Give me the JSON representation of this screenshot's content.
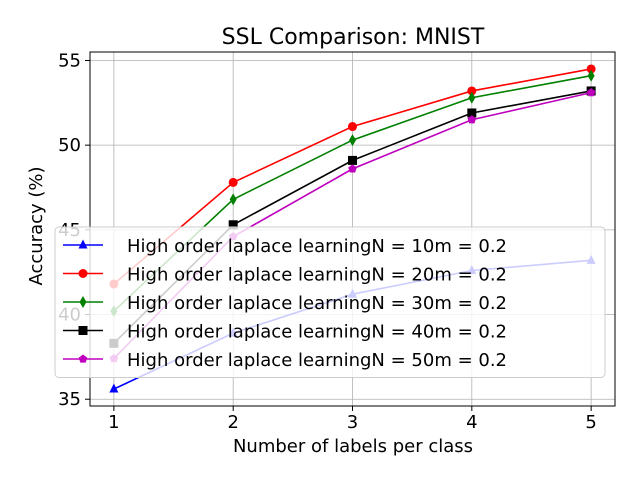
{
  "chart_data": {
    "type": "line",
    "title": "SSL Comparison: MNIST",
    "xlabel": "Number of labels per class",
    "ylabel": "Accuracy (%)",
    "x": [
      1,
      2,
      3,
      4,
      5
    ],
    "xlim": [
      0.8,
      5.2
    ],
    "ylim": [
      34.6,
      55.5
    ],
    "xticks": [
      1,
      2,
      3,
      4,
      5
    ],
    "yticks": [
      35,
      40,
      45,
      50,
      55
    ],
    "grid": true,
    "legend_position": "lower-right",
    "series": [
      {
        "name": "High order laplace learningN = 10m = 0.2",
        "color": "#0000ff",
        "marker": "triangle",
        "values": [
          35.6,
          38.9,
          41.2,
          42.6,
          43.2
        ]
      },
      {
        "name": "High order laplace learningN = 20m = 0.2",
        "color": "#ff0000",
        "marker": "circle",
        "values": [
          41.8,
          47.8,
          51.1,
          53.2,
          54.5
        ]
      },
      {
        "name": "High order laplace learningN = 30m = 0.2",
        "color": "#008000",
        "marker": "diamond",
        "values": [
          40.2,
          46.8,
          50.3,
          52.8,
          54.1
        ]
      },
      {
        "name": "High order laplace learningN = 40m = 0.2",
        "color": "#000000",
        "marker": "square",
        "values": [
          38.3,
          45.3,
          49.1,
          51.9,
          53.2
        ]
      },
      {
        "name": "High order laplace learningN = 50m = 0.2",
        "color": "#bf00bf",
        "marker": "pentagon",
        "values": [
          37.4,
          44.6,
          48.6,
          51.5,
          53.1
        ]
      }
    ]
  }
}
